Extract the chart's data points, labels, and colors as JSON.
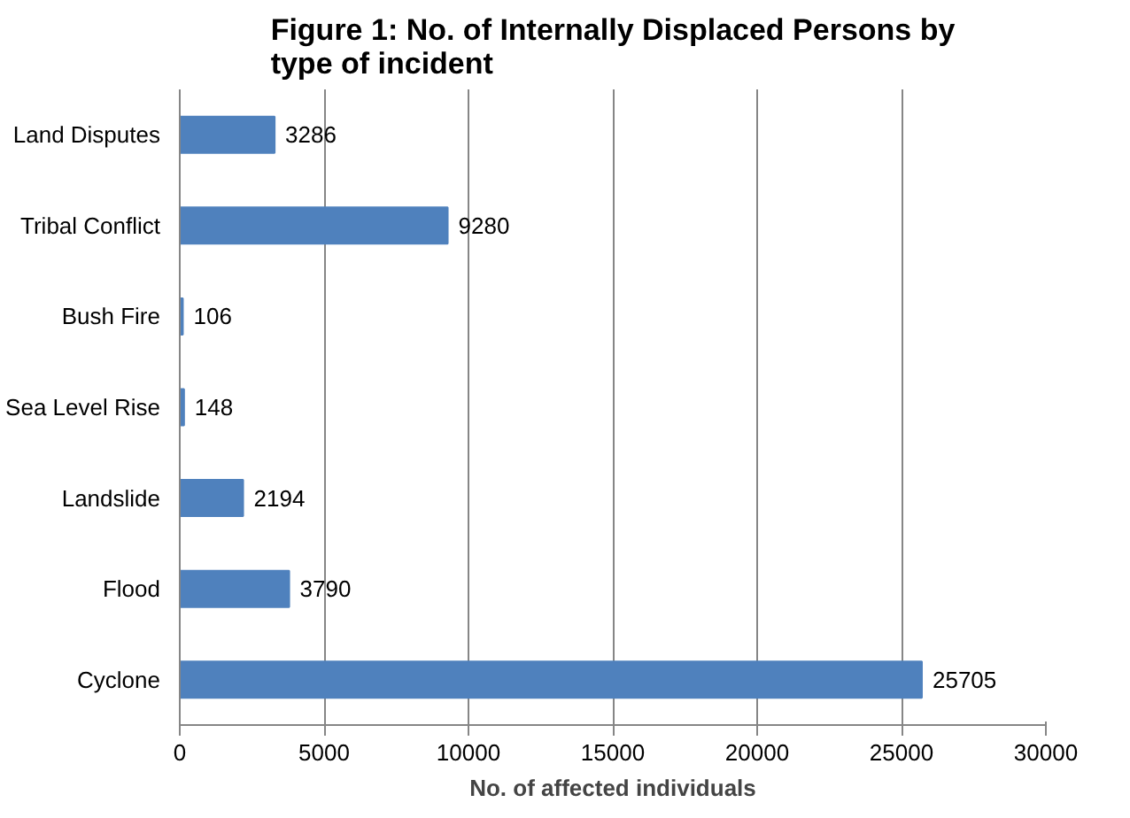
{
  "chart_data": {
    "type": "bar",
    "orientation": "horizontal",
    "title": "Figure 1: No. of Internally Displaced Persons by type of incident",
    "xlabel": "No. of affected individuals",
    "categories": [
      "Land Disputes",
      "Tribal Conflict",
      "Bush Fire",
      "Sea Level Rise",
      "Landslide",
      "Flood",
      "Cyclone"
    ],
    "values": [
      3286,
      9280,
      106,
      148,
      2194,
      3790,
      25705
    ],
    "color": "#4f81bd",
    "xlim": [
      0,
      30000
    ],
    "xticks": [
      0,
      5000,
      10000,
      15000,
      20000,
      25000,
      30000
    ],
    "grid": "x",
    "data_labels": true
  }
}
